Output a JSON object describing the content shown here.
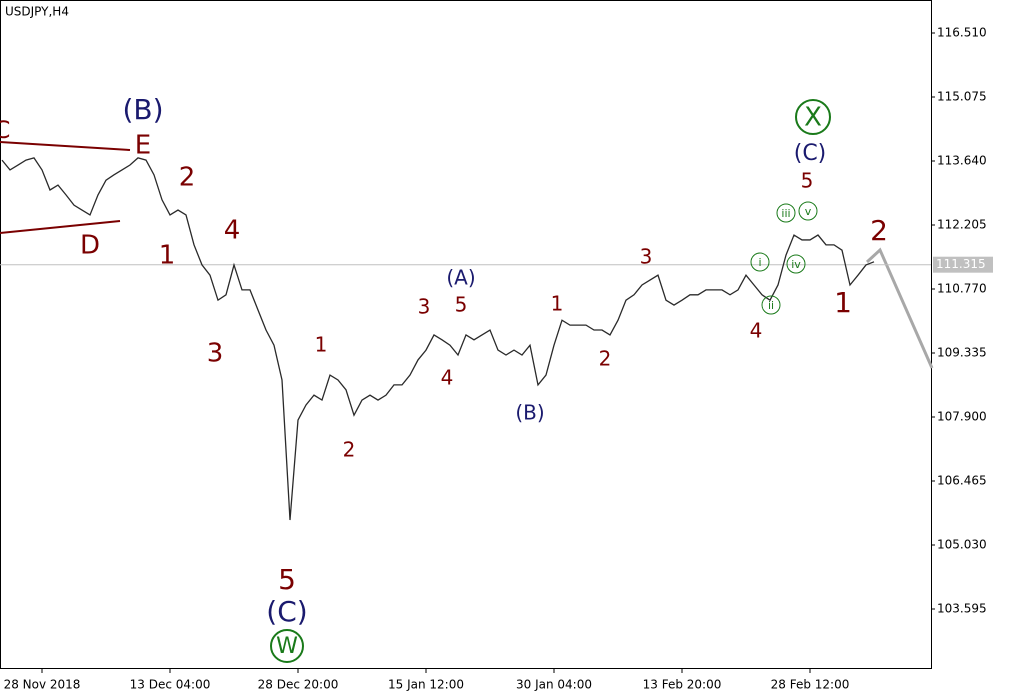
{
  "chart_data": {
    "type": "line",
    "title": "USDJPY,H4",
    "color": "#2a2a2a",
    "grid": false,
    "ylim": [
      102.272,
      117.25
    ],
    "yticks": [
      {
        "value": 116.51,
        "label": "116.510"
      },
      115.075,
      {
        "value": 113.64,
        "label": "113.640"
      },
      112.205,
      {
        "value": 110.77,
        "label": "110.770"
      },
      109.335,
      {
        "value": 107.9,
        "label": "107.900"
      },
      106.465,
      {
        "value": 105.03,
        "label": "105.030"
      },
      103.595
    ],
    "current_price": 111.315,
    "categories": [
      null,
      null,
      null,
      null,
      null,
      "28 Nov 2018",
      null,
      null,
      null,
      null,
      null,
      null,
      null,
      null,
      null,
      null,
      null,
      null,
      null,
      null,
      null,
      "13 Dec 04:00",
      null,
      null,
      null,
      null,
      null,
      null,
      null,
      null,
      null,
      null,
      null,
      null,
      null,
      null,
      null,
      "28 Dec 20:00",
      null,
      null,
      null,
      null,
      null,
      null,
      null,
      null,
      null,
      null,
      null,
      null,
      null,
      null,
      null,
      "15 Jan 12:00",
      null,
      null,
      null,
      null,
      null,
      null,
      null,
      null,
      null,
      null,
      null,
      null,
      null,
      null,
      null,
      "30 Jan 04:00",
      null,
      null,
      null,
      null,
      null,
      null,
      null,
      null,
      null,
      null,
      null,
      null,
      null,
      null,
      null,
      "13 Feb 20:00",
      null,
      null,
      null,
      null,
      null,
      null,
      null,
      null,
      null,
      null,
      null,
      null,
      null,
      null,
      null,
      "28 Feb 12:00",
      null,
      null,
      null,
      null,
      null,
      null,
      null,
      null
    ],
    "values": [
      113.66,
      113.44,
      113.55,
      113.66,
      113.71,
      113.44,
      112.99,
      113.1,
      112.88,
      112.65,
      112.54,
      112.43,
      112.88,
      113.21,
      113.33,
      113.44,
      113.55,
      113.71,
      113.66,
      113.33,
      112.77,
      112.43,
      112.54,
      112.43,
      111.76,
      111.31,
      111.08,
      110.52,
      110.64,
      111.31,
      110.75,
      110.75,
      110.3,
      109.85,
      109.51,
      108.73,
      105.59,
      107.83,
      108.17,
      108.39,
      108.28,
      108.84,
      108.73,
      108.51,
      107.94,
      108.28,
      108.39,
      108.28,
      108.39,
      108.62,
      108.62,
      108.84,
      109.18,
      109.4,
      109.74,
      109.63,
      109.51,
      109.29,
      109.74,
      109.63,
      109.74,
      109.85,
      109.4,
      109.29,
      109.4,
      109.29,
      109.51,
      108.62,
      108.84,
      109.51,
      110.07,
      109.96,
      109.96,
      109.96,
      109.85,
      109.85,
      109.74,
      110.07,
      110.52,
      110.64,
      110.86,
      110.97,
      111.08,
      110.52,
      110.41,
      110.52,
      110.64,
      110.64,
      110.75,
      110.75,
      110.75,
      110.64,
      110.75,
      111.08,
      110.86,
      110.64,
      110.52,
      110.86,
      111.53,
      111.98,
      111.87,
      111.87,
      111.98,
      111.76,
      111.76,
      111.64,
      110.86,
      111.08,
      111.31,
      111.38
    ],
    "annotations": [
      {
        "text": "C",
        "color": "#7a0000"
      },
      {
        "text": "(B)",
        "color": "#1a1a6e"
      },
      {
        "text": "E",
        "color": "#7a0000"
      },
      {
        "text": "D",
        "color": "#7a0000"
      },
      {
        "text": "2",
        "color": "#7a0000"
      },
      {
        "text": "1",
        "color": "#7a0000"
      },
      {
        "text": "4",
        "color": "#7a0000"
      },
      {
        "text": "3",
        "color": "#7a0000"
      },
      {
        "text": "5",
        "color": "#7a0000"
      },
      {
        "text": "(C)",
        "color": "#1a1a6e"
      },
      {
        "text": "W",
        "color": "#1a7a1a"
      },
      {
        "text": "1",
        "color": "#7a0000"
      },
      {
        "text": "2",
        "color": "#7a0000"
      },
      {
        "text": "3",
        "color": "#7a0000"
      },
      {
        "text": "4",
        "color": "#7a0000"
      },
      {
        "text": "5",
        "color": "#7a0000"
      },
      {
        "text": "(A)",
        "color": "#1a1a6e"
      },
      {
        "text": "(B)",
        "color": "#1a1a6e"
      },
      {
        "text": "1",
        "color": "#7a0000"
      },
      {
        "text": "2",
        "color": "#7a0000"
      },
      {
        "text": "3",
        "color": "#7a0000"
      },
      {
        "text": "4",
        "color": "#7a0000"
      },
      {
        "text": "i",
        "color": "#1a7a1a"
      },
      {
        "text": "ii",
        "color": "#1a7a1a"
      },
      {
        "text": "iii",
        "color": "#1a7a1a"
      },
      {
        "text": "iv",
        "color": "#1a7a1a"
      },
      {
        "text": "v",
        "color": "#1a7a1a"
      },
      {
        "text": "5",
        "color": "#7a0000"
      },
      {
        "text": "(C)",
        "color": "#1a1a6e"
      },
      {
        "text": "X",
        "color": "#1a7a1a"
      },
      {
        "text": "1",
        "color": "#7a0000"
      },
      {
        "text": "2",
        "color": "#7a0000"
      }
    ]
  }
}
